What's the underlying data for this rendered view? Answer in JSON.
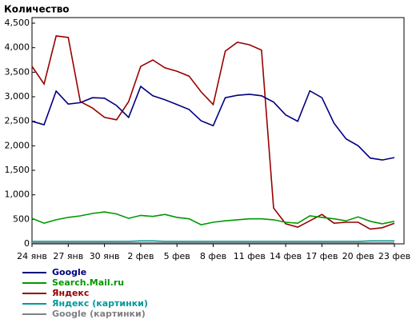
{
  "chart_data": {
    "type": "line",
    "title": "Количество",
    "categories": [
      "24 янв",
      null,
      null,
      "27 янв",
      null,
      null,
      "30 янв",
      null,
      null,
      "2 фев",
      null,
      null,
      "5 фев",
      null,
      null,
      "8 фев",
      null,
      null,
      "11 фев",
      null,
      null,
      "14 фев",
      null,
      null,
      "17 фев",
      null,
      null,
      "20 фев",
      null,
      null,
      "23 фев"
    ],
    "ylim": [
      0,
      4500
    ],
    "yticks": [
      0,
      500,
      {
        "value": 1000,
        "label": "1,000"
      },
      {
        "value": 1500,
        "label": "1,500"
      },
      {
        "value": 2000,
        "label": "2,000"
      },
      {
        "value": 2500,
        "label": "2,500"
      },
      {
        "value": 3000,
        "label": "3,000"
      },
      {
        "value": 3500,
        "label": "3,500"
      },
      {
        "value": 4000,
        "label": "4,000"
      },
      {
        "value": 4500,
        "label": "4,500"
      }
    ],
    "series": [
      {
        "name": "Google",
        "color": "#000080",
        "values": [
          2500,
          2430,
          3115,
          2850,
          2880,
          2980,
          2970,
          2820,
          2580,
          3210,
          3020,
          2940,
          2840,
          2740,
          2510,
          2410,
          2980,
          3030,
          3050,
          3020,
          2890,
          2630,
          2500,
          3120,
          2980,
          2460,
          2140,
          2000,
          1750,
          1710,
          1760
        ]
      },
      {
        "name": "Search.Mail.ru",
        "color": "#009900",
        "values": [
          520,
          420,
          490,
          540,
          570,
          620,
          650,
          610,
          520,
          580,
          560,
          600,
          540,
          510,
          390,
          440,
          470,
          490,
          510,
          510,
          490,
          440,
          420,
          570,
          540,
          510,
          470,
          550,
          460,
          410,
          460
        ]
      },
      {
        "name": "Яндекс",
        "color": "#990000",
        "values": [
          3620,
          3260,
          4240,
          4210,
          2900,
          2770,
          2580,
          2530,
          2900,
          3620,
          3750,
          3590,
          3520,
          3420,
          3100,
          2840,
          3930,
          4110,
          4060,
          3950,
          730,
          410,
          340,
          470,
          600,
          420,
          440,
          440,
          300,
          330,
          420
        ]
      },
      {
        "name": "Яндекс (картинки)",
        "color": "#009999",
        "values": [
          50,
          50,
          50,
          50,
          50,
          50,
          50,
          50,
          50,
          60,
          60,
          50,
          50,
          50,
          50,
          50,
          50,
          50,
          50,
          50,
          50,
          50,
          50,
          50,
          50,
          50,
          50,
          50,
          60,
          60,
          60
        ]
      },
      {
        "name": "Google (картинки)",
        "color": "#808080",
        "values": [
          20,
          20,
          20,
          20,
          20,
          20,
          20,
          20,
          20,
          20,
          20,
          20,
          20,
          20,
          20,
          20,
          20,
          20,
          20,
          20,
          20,
          20,
          20,
          20,
          20,
          20,
          20,
          20,
          20,
          20,
          20
        ]
      }
    ]
  }
}
